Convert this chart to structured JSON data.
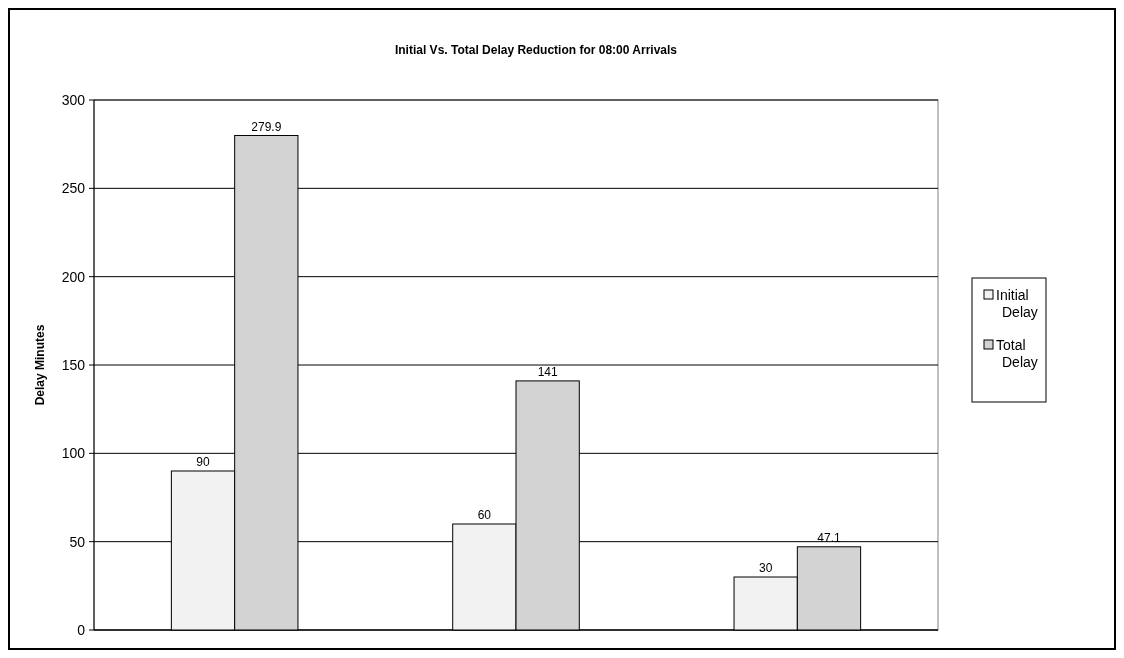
{
  "chart_data": {
    "type": "bar",
    "title": "Initial Vs. Total Delay Reduction for 08:00 Arrivals",
    "ylabel": "Delay Minutes",
    "categories": [
      null,
      null,
      null
    ],
    "series": [
      {
        "name": "Initial Delay",
        "color": "#f2f2f2",
        "values": [
          90,
          60,
          30
        ]
      },
      {
        "name": "Total Delay",
        "color": "#d3d3d3",
        "values": [
          279.9,
          141,
          47.1
        ]
      }
    ],
    "ylim": [
      0,
      300
    ],
    "yticks": [
      0,
      50,
      100,
      150,
      200,
      250,
      300
    ],
    "grid": "y",
    "legend": "right",
    "data_labels": true
  }
}
